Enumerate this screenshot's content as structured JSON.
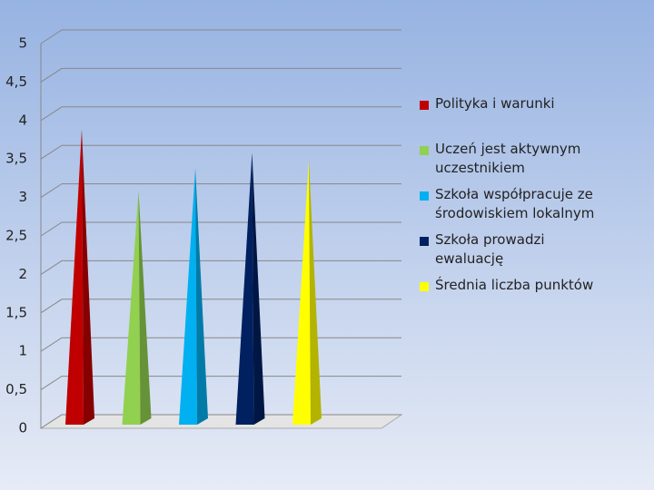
{
  "chart_data": {
    "type": "bar",
    "categories": [
      null
    ],
    "series": [
      {
        "name": "Polityka i warunki",
        "color": "#c00000",
        "values": [
          3.8
        ]
      },
      {
        "name": "Uczeń jest aktywnym uczestnikiem",
        "color": "#92d050",
        "values": [
          3.0
        ]
      },
      {
        "name": "Szkoła współpracuje ze środowiskiem lokalnym",
        "color": "#00b0f0",
        "values": [
          3.3
        ]
      },
      {
        "name": "Szkoła prowadzi ewaluację",
        "color": "#002060",
        "values": [
          3.5
        ]
      },
      {
        "name": "Średnia liczba punktów",
        "color": "#ffff00",
        "values": [
          3.4
        ]
      }
    ],
    "ylim": [
      0,
      5
    ],
    "yticks": [
      0,
      {
        "value": 0.5,
        "label": "0,5"
      },
      1,
      {
        "value": 1.5,
        "label": "1,5"
      },
      2,
      {
        "value": 2.5,
        "label": "2,5"
      },
      3,
      {
        "value": 3.5,
        "label": "3,5"
      },
      4,
      {
        "value": 4.5,
        "label": "4,5"
      },
      5
    ],
    "grid": true,
    "legend": "right"
  }
}
